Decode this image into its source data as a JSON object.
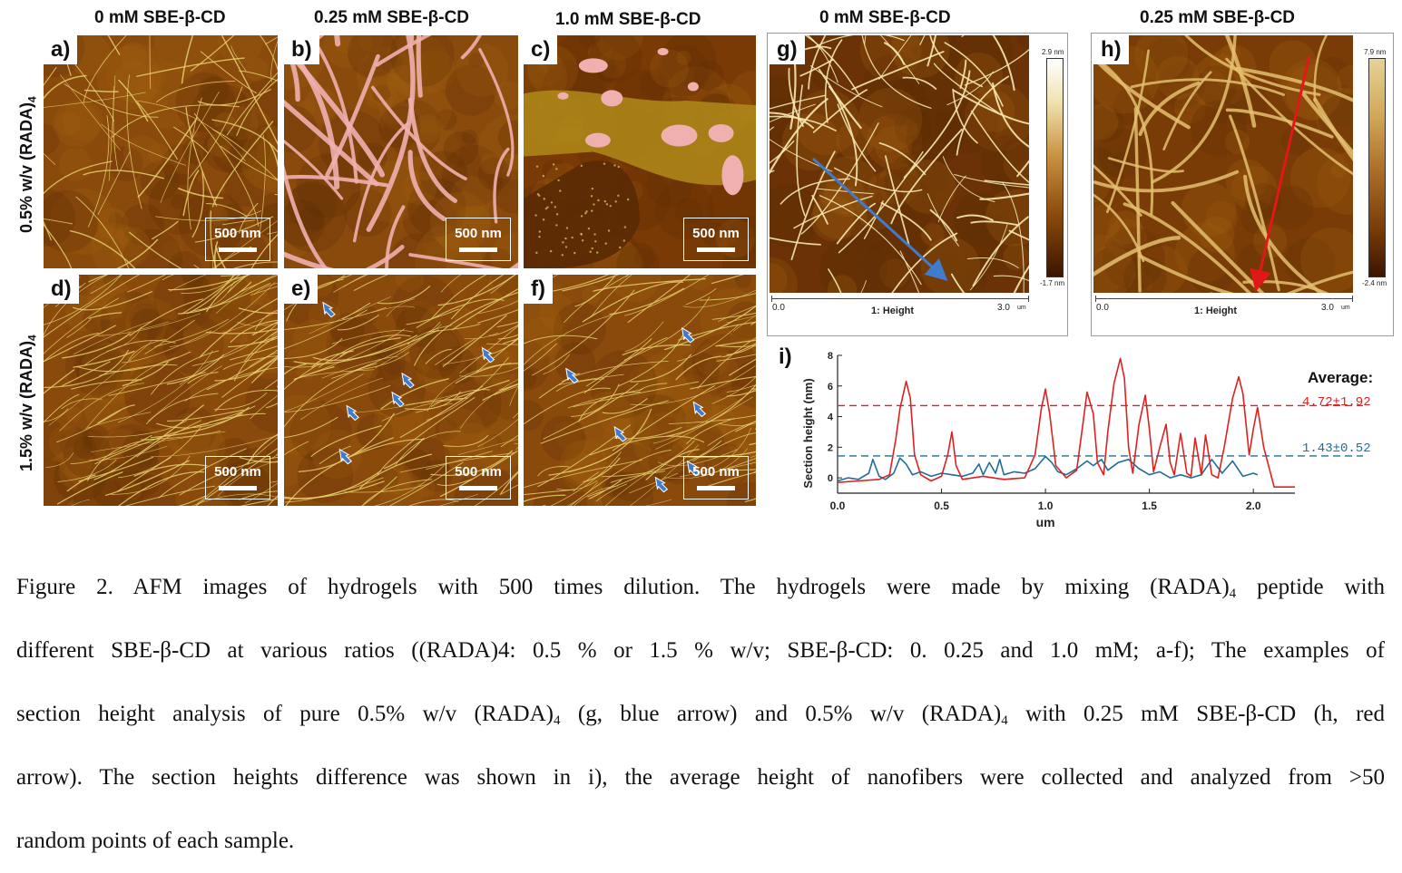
{
  "columns": {
    "a": "0 mM SBE-β-CD",
    "b": "0.25 mM SBE-β-CD",
    "c": "1.0 mM SBE-β-CD",
    "g": "0 mM SBE-β-CD",
    "h": "0.25 mM SBE-β-CD"
  },
  "rows": {
    "r1_main": "0.5% w/v (RADA)",
    "r1_sub": "4",
    "r2_main": "1.5% w/v (RADA)",
    "r2_sub": "4"
  },
  "panels": {
    "a": "a)",
    "b": "b)",
    "c": "c)",
    "d": "d)",
    "e": "e)",
    "f": "f)",
    "g": "g)",
    "h": "h)",
    "i": "i)"
  },
  "scale_bar": "500 nm",
  "afm": {
    "g": {
      "max": "2.9 nm",
      "min": "-1.7 nm",
      "x_start": "0.0",
      "x_title": "1: Height",
      "x_end": "3.0",
      "x_unit": "um"
    },
    "h": {
      "max": "7.9 nm",
      "min": "-2.4 nm",
      "x_start": "0.0",
      "x_title": "1: Height",
      "x_end": "3.0",
      "x_unit": "um"
    }
  },
  "colors": {
    "afm_dark": "#5a2a05",
    "afm_mid": "#9a5a12",
    "fiber": "#e8d070",
    "pink": "#f0b0b0",
    "red_series": "#e02020",
    "blue_series": "#1f6e9a",
    "arrow_blue": "#3f7ccc",
    "arrow_red": "#e01818"
  },
  "chart_data": {
    "type": "line",
    "title": "",
    "xlabel": "um",
    "ylabel": "Section height (nm)",
    "xlim": [
      0.0,
      2.2
    ],
    "ylim": [
      -1,
      8
    ],
    "xticks": [
      "0.0",
      "0.5",
      "1.0",
      "1.5",
      "2.0"
    ],
    "yticks": [
      "0",
      "2",
      "4",
      "6",
      "8"
    ],
    "legend_title": "Average:",
    "series": [
      {
        "color": "#e02020",
        "average_label": "4.72±1.92",
        "average": 4.72,
        "x": [
          0.0,
          0.1,
          0.2,
          0.25,
          0.28,
          0.3,
          0.33,
          0.35,
          0.37,
          0.4,
          0.45,
          0.5,
          0.53,
          0.55,
          0.57,
          0.6,
          0.7,
          0.8,
          0.9,
          0.95,
          0.98,
          1.0,
          1.02,
          1.05,
          1.1,
          1.15,
          1.18,
          1.2,
          1.23,
          1.25,
          1.28,
          1.3,
          1.33,
          1.36,
          1.38,
          1.4,
          1.42,
          1.45,
          1.48,
          1.5,
          1.52,
          1.55,
          1.58,
          1.6,
          1.62,
          1.65,
          1.68,
          1.7,
          1.72,
          1.75,
          1.77,
          1.8,
          1.83,
          1.86,
          1.9,
          1.93,
          1.95,
          1.98,
          2.0,
          2.02,
          2.05,
          2.1,
          2.2
        ],
        "y": [
          -0.3,
          -0.2,
          -0.1,
          0.2,
          2.5,
          4.5,
          6.3,
          5.2,
          1.5,
          0.2,
          -0.2,
          0.1,
          1.5,
          3.0,
          0.8,
          -0.1,
          0.1,
          -0.1,
          0.0,
          1.5,
          4.5,
          5.8,
          4.2,
          0.8,
          0.0,
          0.5,
          3.5,
          5.6,
          4.2,
          1.0,
          0.2,
          3.0,
          6.2,
          7.8,
          6.5,
          2.0,
          0.3,
          3.5,
          5.4,
          3.2,
          0.4,
          2.0,
          3.5,
          1.0,
          0.2,
          2.9,
          0.3,
          0.1,
          2.6,
          0.2,
          2.8,
          0.2,
          0.0,
          2.0,
          5.2,
          6.6,
          5.5,
          1.5,
          3.2,
          4.6,
          2.0,
          -0.6,
          -0.6
        ]
      },
      {
        "color": "#1f6e9a",
        "average_label": "1.43±0.52",
        "average": 1.43,
        "x": [
          0.0,
          0.05,
          0.1,
          0.15,
          0.17,
          0.2,
          0.23,
          0.27,
          0.3,
          0.33,
          0.36,
          0.4,
          0.45,
          0.5,
          0.55,
          0.6,
          0.65,
          0.68,
          0.7,
          0.73,
          0.76,
          0.78,
          0.8,
          0.85,
          0.9,
          0.95,
          1.0,
          1.03,
          1.06,
          1.1,
          1.15,
          1.2,
          1.23,
          1.27,
          1.3,
          1.35,
          1.4,
          1.45,
          1.5,
          1.55,
          1.6,
          1.65,
          1.7,
          1.75,
          1.8,
          1.85,
          1.9,
          1.95,
          2.0,
          2.02
        ],
        "y": [
          -0.2,
          0.0,
          -0.1,
          0.3,
          1.2,
          0.1,
          -0.1,
          0.3,
          1.3,
          0.9,
          0.2,
          0.4,
          0.1,
          0.3,
          0.2,
          0.1,
          0.3,
          0.9,
          0.2,
          1.0,
          0.3,
          1.2,
          0.2,
          0.4,
          0.3,
          0.6,
          1.4,
          1.0,
          0.4,
          0.2,
          0.6,
          1.1,
          0.8,
          1.2,
          0.5,
          1.0,
          1.2,
          0.6,
          0.2,
          0.4,
          0.0,
          0.2,
          0.0,
          0.2,
          1.2,
          0.3,
          1.1,
          0.1,
          0.3,
          0.2
        ]
      }
    ]
  },
  "caption": {
    "l1_a": "Figure 2. AFM images of hydrogels with 500 times dilution. The hydrogels were made by mixing (RADA)",
    "l1_sub": "4",
    "l1_b": " peptide with",
    "l2": "different SBE-β-CD at various ratios ((RADA)4: 0.5 % or 1.5 % w/v; SBE-β-CD: 0. 0.25 and 1.0 mM; a-f); The examples of",
    "l3_a": "section height analysis of pure 0.5% w/v (RADA)",
    "l3_sub1": "4",
    "l3_b": " (g, blue arrow) and 0.5% w/v (RADA)",
    "l3_sub2": "4",
    "l3_c": " with 0.25 mM SBE-β-CD (h, red",
    "l4": "arrow). The section heights difference was shown in i), the average height of nanofibers were collected and analyzed from >50",
    "l5": "random points of each sample."
  }
}
